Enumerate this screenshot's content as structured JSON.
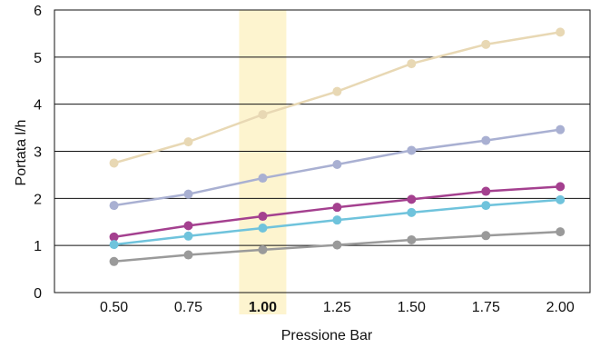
{
  "chart_data": {
    "type": "line",
    "title": "",
    "xlabel": "Pressione Bar",
    "ylabel": "Portata l/h",
    "x": [
      0.5,
      0.75,
      1.0,
      1.25,
      1.5,
      1.75,
      2.0
    ],
    "x_tick_labels": [
      "0.50",
      "0.75",
      "1.00",
      "1.25",
      "1.50",
      "1.75",
      "2.00"
    ],
    "y_tick_labels": [
      "0",
      "1",
      "2",
      "3",
      "4",
      "5",
      "6"
    ],
    "xlim": [
      0.3,
      2.1
    ],
    "ylim": [
      0,
      6
    ],
    "grid": "horizontal",
    "highlight": {
      "x": 1.0,
      "color": "#fdf4cf",
      "label_bold": true
    },
    "series": [
      {
        "color": "#e8d8b4",
        "values": [
          2.75,
          3.2,
          3.78,
          4.27,
          4.86,
          5.27,
          5.53
        ]
      },
      {
        "color": "#a9b0d2",
        "values": [
          1.85,
          2.09,
          2.43,
          2.72,
          3.02,
          3.23,
          3.46
        ]
      },
      {
        "color": "#a4408f",
        "values": [
          1.18,
          1.42,
          1.62,
          1.81,
          1.98,
          2.15,
          2.25
        ]
      },
      {
        "color": "#6fc3dc",
        "values": [
          1.02,
          1.2,
          1.37,
          1.54,
          1.7,
          1.85,
          1.97
        ]
      },
      {
        "color": "#9a9a9a",
        "values": [
          0.66,
          0.8,
          0.91,
          1.01,
          1.12,
          1.21,
          1.29
        ]
      }
    ]
  }
}
